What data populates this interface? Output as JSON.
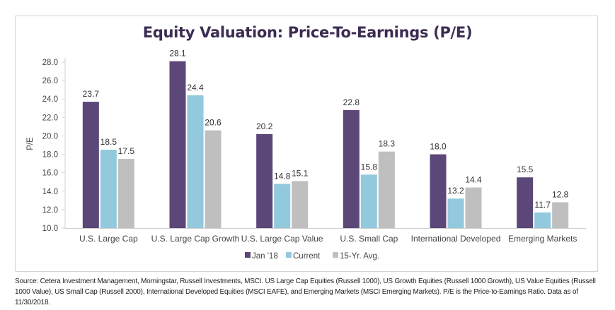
{
  "chart_data": {
    "type": "bar",
    "title": "Equity Valuation: Price-To-Earnings (P/E)",
    "xlabel": "",
    "ylabel": "P/E",
    "ylim": [
      10.0,
      28.0
    ],
    "yticks": [
      10.0,
      12.0,
      14.0,
      16.0,
      18.0,
      20.0,
      22.0,
      24.0,
      26.0,
      28.0
    ],
    "grid": false,
    "legend_position": "bottom",
    "categories": [
      "U.S. Large Cap",
      "U.S. Large Cap Growth",
      "U.S. Large Cap Value",
      "U.S. Small Cap",
      "International Developed",
      "Emerging Markets"
    ],
    "series": [
      {
        "name": "Jan '18",
        "color": "#5b4778",
        "values": [
          23.7,
          28.1,
          20.2,
          22.8,
          18.0,
          15.5
        ]
      },
      {
        "name": "Current",
        "color": "#92c9dc",
        "values": [
          18.5,
          24.4,
          14.8,
          15.8,
          13.2,
          11.7
        ]
      },
      {
        "name": "15-Yr. Avg.",
        "color": "#bfbfbf",
        "values": [
          17.5,
          20.6,
          15.1,
          18.3,
          14.4,
          12.8
        ]
      }
    ]
  },
  "source_note": "Source: Cetera Investment Management, Morningstar, Russell Investments, MSCI. US Large Cap Equities (Russell 1000), US Growth Equities (Russell 1000 Growth), US Value Equities (Russell 1000 Value), US Small Cap (Russell 2000), International Developed Equities (MSCI EAFE), and Emerging Markets (MSCI Emerging Markets). P/E is the Price-to-Earnings Ratio. Data as of 11/30/2018."
}
